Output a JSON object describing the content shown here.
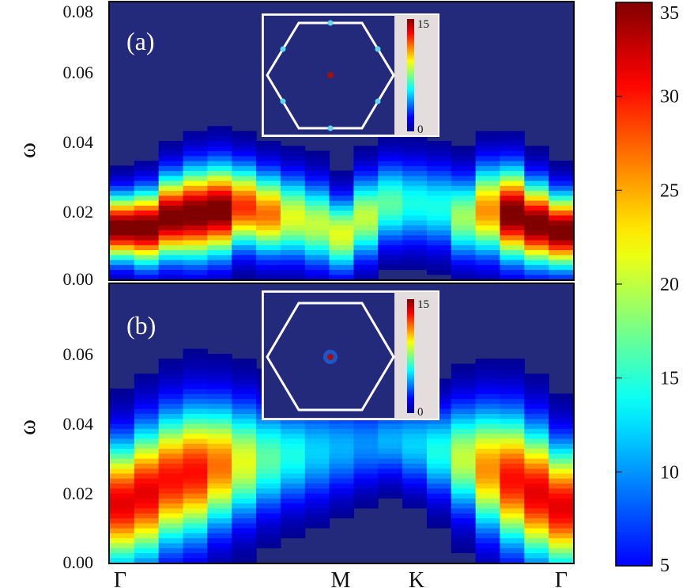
{
  "chart_data": {
    "type": "heatmap",
    "colormap": "jet",
    "colorbar": {
      "min": 5,
      "max": 35,
      "ticks": [
        "35",
        "30",
        "25",
        "20",
        "15",
        "10",
        "5"
      ]
    },
    "x_ticks": [
      "Γ",
      "M",
      "K",
      "Γ"
    ],
    "panels": [
      {
        "label": "(a)",
        "ylabel": "ω",
        "ylim": [
          0,
          0.08
        ],
        "y_ticks": [
          "0.08",
          "0.06",
          "0.04",
          "0.02",
          "0.00"
        ],
        "columns": [
          {
            "center": 0.015,
            "width": 0.008,
            "peak": 36
          },
          {
            "center": 0.015,
            "width": 0.009,
            "peak": 36
          },
          {
            "center": 0.018,
            "width": 0.01,
            "peak": 36
          },
          {
            "center": 0.019,
            "width": 0.011,
            "peak": 36
          },
          {
            "center": 0.02,
            "width": 0.011,
            "peak": 36
          },
          {
            "center": 0.021,
            "width": 0.01,
            "peak": 30
          },
          {
            "center": 0.019,
            "width": 0.01,
            "peak": 28
          },
          {
            "center": 0.018,
            "width": 0.01,
            "peak": 23
          },
          {
            "center": 0.016,
            "width": 0.01,
            "peak": 22
          },
          {
            "center": 0.013,
            "width": 0.009,
            "peak": 23
          },
          {
            "center": 0.018,
            "width": 0.01,
            "peak": 22
          },
          {
            "center": 0.022,
            "width": 0.01,
            "peak": 19
          },
          {
            "center": 0.022,
            "width": 0.01,
            "peak": 17
          },
          {
            "center": 0.021,
            "width": 0.01,
            "peak": 17
          },
          {
            "center": 0.018,
            "width": 0.01,
            "peak": 21
          },
          {
            "center": 0.02,
            "width": 0.011,
            "peak": 27
          },
          {
            "center": 0.019,
            "width": 0.011,
            "peak": 36
          },
          {
            "center": 0.016,
            "width": 0.01,
            "peak": 36
          },
          {
            "center": 0.014,
            "width": 0.009,
            "peak": 36
          }
        ]
      },
      {
        "label": "(b)",
        "ylabel": "ω",
        "ylim": [
          0,
          0.08
        ],
        "y_ticks": [
          "0.06",
          "0.04",
          "0.02",
          "0.00"
        ],
        "columns": [
          {
            "center": 0.017,
            "width": 0.015,
            "peak": 32
          },
          {
            "center": 0.02,
            "width": 0.016,
            "peak": 32
          },
          {
            "center": 0.024,
            "width": 0.016,
            "peak": 31
          },
          {
            "center": 0.026,
            "width": 0.016,
            "peak": 31
          },
          {
            "center": 0.028,
            "width": 0.015,
            "peak": 28
          },
          {
            "center": 0.029,
            "width": 0.014,
            "peak": 23
          },
          {
            "center": 0.03,
            "width": 0.013,
            "peak": 19
          },
          {
            "center": 0.031,
            "width": 0.012,
            "peak": 17
          },
          {
            "center": 0.032,
            "width": 0.012,
            "peak": 15
          },
          {
            "center": 0.033,
            "width": 0.011,
            "peak": 14
          },
          {
            "center": 0.034,
            "width": 0.01,
            "peak": 13
          },
          {
            "center": 0.035,
            "width": 0.009,
            "peak": 14
          },
          {
            "center": 0.034,
            "width": 0.01,
            "peak": 15
          },
          {
            "center": 0.032,
            "width": 0.011,
            "peak": 17
          },
          {
            "center": 0.03,
            "width": 0.013,
            "peak": 22
          },
          {
            "center": 0.027,
            "width": 0.015,
            "peak": 27
          },
          {
            "center": 0.024,
            "width": 0.016,
            "peak": 31
          },
          {
            "center": 0.02,
            "width": 0.016,
            "peak": 32
          },
          {
            "center": 0.016,
            "width": 0.015,
            "peak": 32
          }
        ]
      }
    ],
    "insets": [
      {
        "panel": "(a)",
        "colorbar_ticks": [
          "15",
          "0"
        ],
        "center_spot": "dark-red",
        "vertex_spots": "cyan"
      },
      {
        "panel": "(b)",
        "colorbar_ticks": [
          "15",
          "0"
        ],
        "center_spot": "dark-red",
        "vertex_spots": "none"
      }
    ]
  }
}
